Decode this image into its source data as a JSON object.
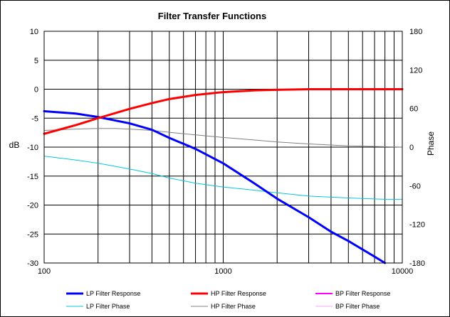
{
  "chart_data": {
    "type": "line",
    "title": "Filter Transfer Functions",
    "xlabel": "",
    "ylabel": "dB",
    "y2label": "Phase",
    "xscale": "log",
    "xlim": [
      100,
      10000
    ],
    "ylim": [
      -30,
      10
    ],
    "y2lim": [
      -180,
      180
    ],
    "grid": true,
    "legend_position": "bottom",
    "x_ticks": [
      "100",
      "1000",
      "10000"
    ],
    "y_ticks": [
      "10",
      "5",
      "0",
      "-5",
      "-10",
      "-15",
      "-20",
      "-25",
      "-30"
    ],
    "y2_ticks": [
      "180",
      "120",
      "60",
      "0",
      "-60",
      "-120",
      "-180"
    ],
    "series": [
      {
        "name": "LP Filter Response",
        "axis": "left",
        "color": "#0000ff",
        "width": 3,
        "x": [
          100,
          150,
          200,
          300,
          400,
          500,
          700,
          1000,
          1500,
          2000,
          3000,
          4000,
          5000,
          7000,
          8000
        ],
        "y": [
          -3.8,
          -4.2,
          -4.8,
          -5.9,
          -7.0,
          -8.4,
          -10.3,
          -12.8,
          -16.3,
          -18.9,
          -22.1,
          -24.6,
          -26.2,
          -28.9,
          -30
        ]
      },
      {
        "name": "HP Filter Response",
        "axis": "left",
        "color": "#ff0000",
        "width": 3,
        "x": [
          100,
          150,
          200,
          300,
          400,
          500,
          700,
          1000,
          1500,
          2000,
          3000,
          5000,
          10000
        ],
        "y": [
          -7.7,
          -6.2,
          -5.0,
          -3.4,
          -2.4,
          -1.7,
          -1.0,
          -0.5,
          -0.2,
          -0.1,
          0.0,
          0.0,
          0.0
        ]
      },
      {
        "name": "BP Filter Response",
        "axis": "left",
        "color": "#ff00ff",
        "width": 1.5,
        "x": [],
        "y": []
      },
      {
        "name": "LP Filter Phase",
        "axis": "right",
        "color": "#00c8e0",
        "width": 1,
        "x": [
          100,
          150,
          200,
          300,
          400,
          500,
          700,
          1000,
          1500,
          2000,
          3000,
          5000,
          8000,
          10000
        ],
        "y": [
          -14,
          -20,
          -25,
          -34,
          -41,
          -48,
          -56,
          -62,
          -67,
          -71,
          -76,
          -79,
          -81,
          -81
        ]
      },
      {
        "name": "HP Filter Phase",
        "axis": "right",
        "color": "#808080",
        "width": 1,
        "x": [
          100,
          150,
          200,
          250,
          300,
          400,
          500,
          700,
          1000,
          1500,
          2000,
          3000,
          5000,
          10000
        ],
        "y": [
          26,
          28,
          29,
          29,
          28,
          26,
          23,
          19,
          15,
          11,
          8,
          5,
          2,
          0
        ]
      },
      {
        "name": "BP Filter Phase",
        "axis": "right",
        "color": "#ffa0ff",
        "width": 1,
        "x": [],
        "y": []
      }
    ]
  }
}
